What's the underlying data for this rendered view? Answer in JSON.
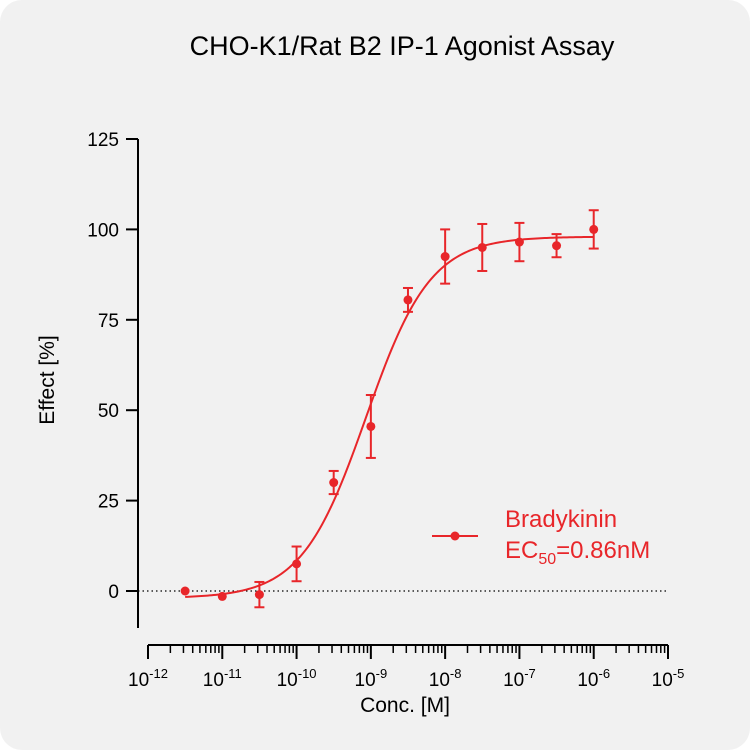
{
  "chart_data": {
    "type": "scatter",
    "title": "CHO-K1/Rat B2 IP-1 Agonist Assay",
    "xlabel": "Conc. [M]",
    "ylabel": "Effect  [%]",
    "x_scale": "log",
    "xlim": [
      1e-12,
      1e-05
    ],
    "ylim": [
      -10,
      125
    ],
    "x_ticks": [
      {
        "base": "10",
        "exp": "-12"
      },
      {
        "base": "10",
        "exp": "-11"
      },
      {
        "base": "10",
        "exp": "-10"
      },
      {
        "base": "10",
        "exp": "-9"
      },
      {
        "base": "10",
        "exp": "-8"
      },
      {
        "base": "10",
        "exp": "-7"
      },
      {
        "base": "10",
        "exp": "-6"
      },
      {
        "base": "10",
        "exp": "-5"
      }
    ],
    "y_ticks": [
      "0",
      "25",
      "50",
      "75",
      "100",
      "125"
    ],
    "y_tick_values": [
      0,
      25,
      50,
      75,
      100,
      125
    ],
    "baseline_dotted_at": 0,
    "series": [
      {
        "name": "Bradykinin",
        "color": "#e8262a",
        "points": [
          {
            "x": 3.16e-12,
            "y": 0.0,
            "err": 0
          },
          {
            "x": 1e-11,
            "y": -1.5,
            "err": 0
          },
          {
            "x": 3.16e-11,
            "y": -1.0,
            "err": 3.5
          },
          {
            "x": 1e-10,
            "y": 7.5,
            "err": 4.8
          },
          {
            "x": 3.16e-10,
            "y": 30.0,
            "err": 3.2
          },
          {
            "x": 1e-09,
            "y": 45.5,
            "err": 8.7
          },
          {
            "x": 3.16e-09,
            "y": 80.5,
            "err": 3.3
          },
          {
            "x": 1e-08,
            "y": 92.5,
            "err": 7.5
          },
          {
            "x": 3.16e-08,
            "y": 95.0,
            "err": 6.5
          },
          {
            "x": 1e-07,
            "y": 96.5,
            "err": 5.3
          },
          {
            "x": 3.16e-07,
            "y": 95.5,
            "err": 3.2
          },
          {
            "x": 1e-06,
            "y": 100.0,
            "err": 5.3
          }
        ],
        "fit": {
          "bottom": -2,
          "top": 98,
          "ec50": 8.6e-10,
          "hill": 1.0
        }
      }
    ],
    "legend": {
      "position": "right",
      "label": "Bradykinin",
      "ec50_prefix": "EC",
      "ec50_sub": "50",
      "ec50_value": "=0.86nM"
    }
  }
}
